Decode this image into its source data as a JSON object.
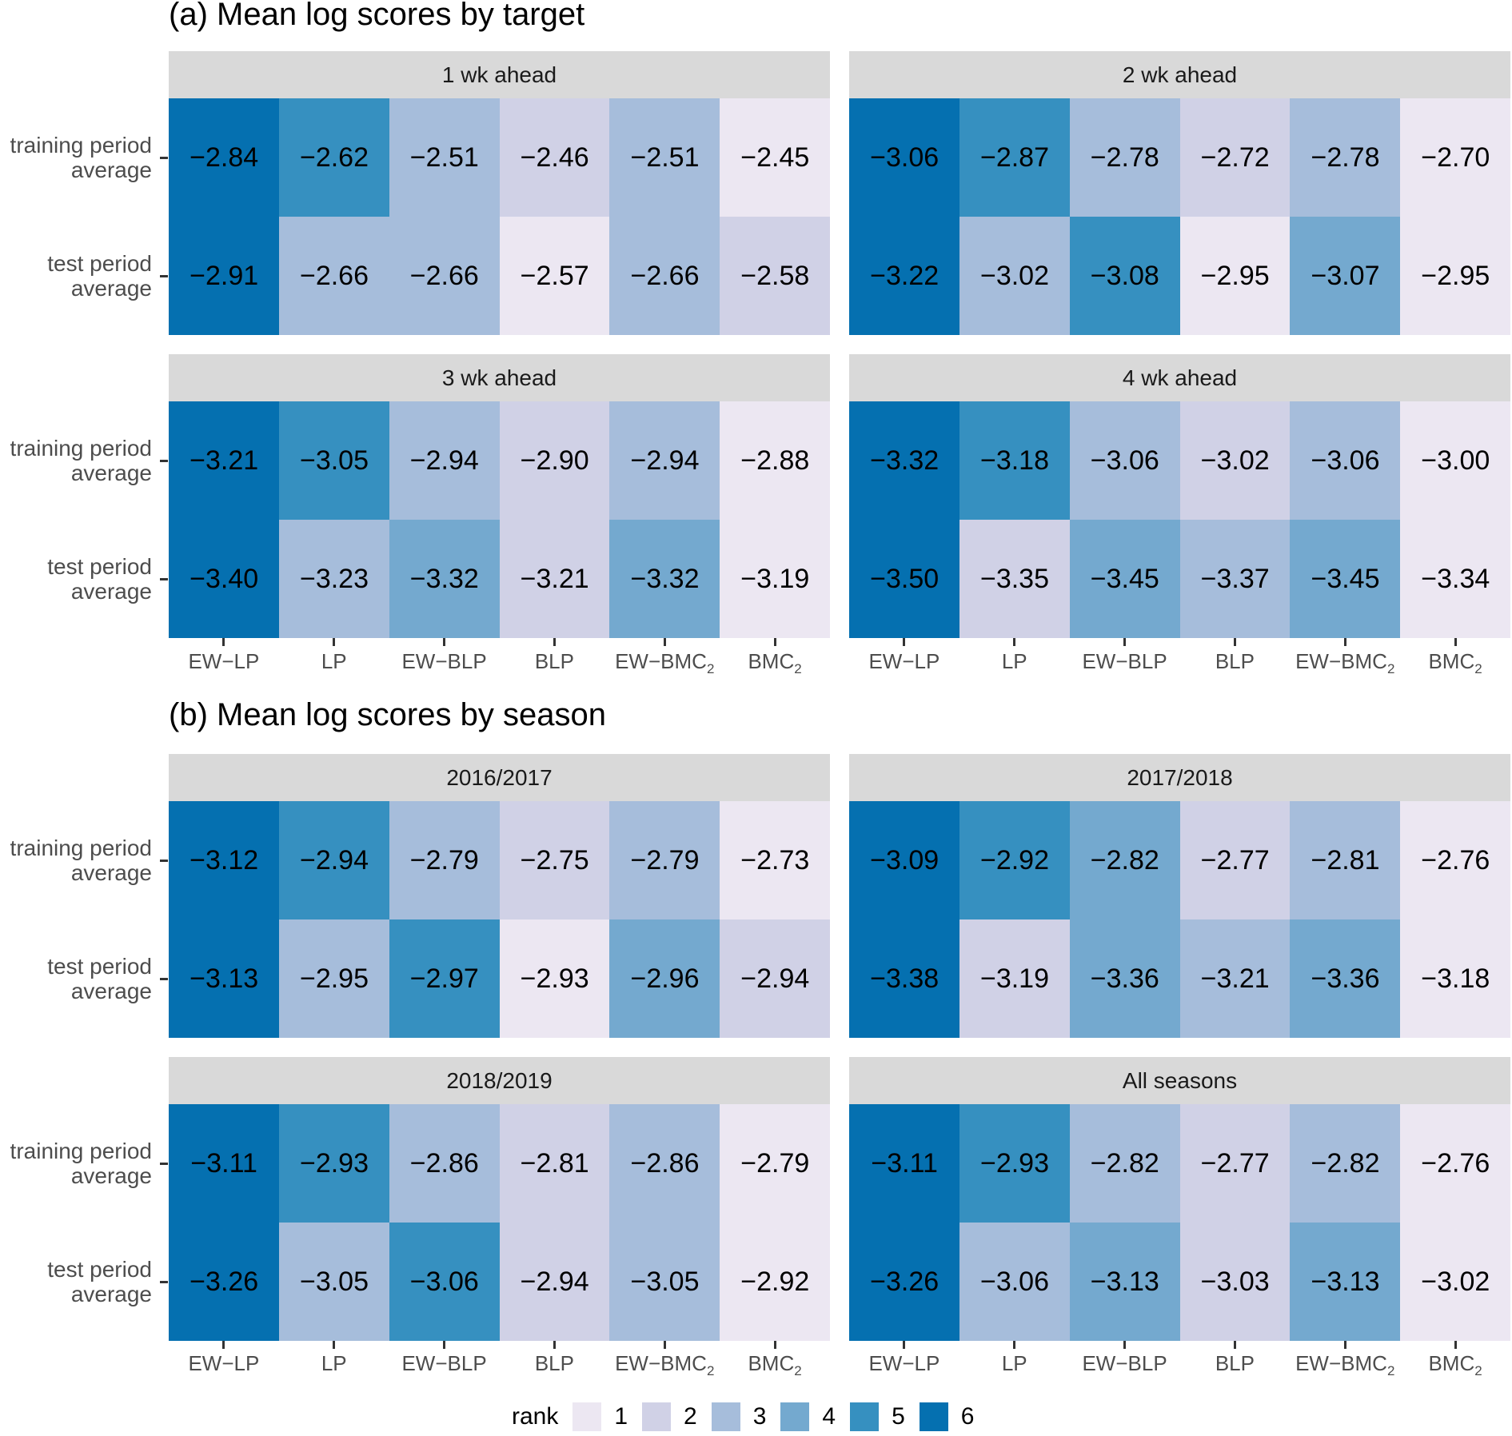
{
  "colors": {
    "1": "#ECE7F2",
    "2": "#D0D1E6",
    "3": "#A6BDDB",
    "4": "#74A9CF",
    "5": "#3690C0",
    "6": "#0570B0"
  },
  "chart_data": [
    {
      "type": "heatmap",
      "title": "(a) Mean log scores by target",
      "x": [
        "EW−LP",
        "LP",
        "EW−BLP",
        "BLP",
        "EW−BMC2",
        "BMC2"
      ],
      "y": [
        "training period average",
        "test period average"
      ],
      "panels": [
        {
          "label": "1 wk ahead",
          "values": [
            [
              -2.84,
              -2.62,
              -2.51,
              -2.46,
              -2.51,
              -2.45
            ],
            [
              -2.91,
              -2.66,
              -2.66,
              -2.57,
              -2.66,
              -2.58
            ]
          ],
          "ranks": [
            [
              6,
              5,
              3,
              2,
              3,
              1
            ],
            [
              6,
              3,
              3,
              1,
              3,
              2
            ]
          ]
        },
        {
          "label": "2 wk ahead",
          "values": [
            [
              -3.06,
              -2.87,
              -2.78,
              -2.72,
              -2.78,
              -2.7
            ],
            [
              -3.22,
              -3.02,
              -3.08,
              -2.95,
              -3.07,
              -2.95
            ]
          ],
          "ranks": [
            [
              6,
              5,
              3,
              2,
              3,
              1
            ],
            [
              6,
              3,
              5,
              1,
              4,
              1
            ]
          ]
        },
        {
          "label": "3 wk ahead",
          "values": [
            [
              -3.21,
              -3.05,
              -2.94,
              -2.9,
              -2.94,
              -2.88
            ],
            [
              -3.4,
              -3.23,
              -3.32,
              -3.21,
              -3.32,
              -3.19
            ]
          ],
          "ranks": [
            [
              6,
              5,
              3,
              2,
              3,
              1
            ],
            [
              6,
              3,
              4,
              2,
              4,
              1
            ]
          ]
        },
        {
          "label": "4 wk ahead",
          "values": [
            [
              -3.32,
              -3.18,
              -3.06,
              -3.02,
              -3.06,
              -3.0
            ],
            [
              -3.5,
              -3.35,
              -3.45,
              -3.37,
              -3.45,
              -3.34
            ]
          ],
          "ranks": [
            [
              6,
              5,
              3,
              2,
              3,
              1
            ],
            [
              6,
              2,
              4,
              3,
              4,
              1
            ]
          ]
        }
      ]
    },
    {
      "type": "heatmap",
      "title": "(b) Mean log scores by season",
      "x": [
        "EW−LP",
        "LP",
        "EW−BLP",
        "BLP",
        "EW−BMC2",
        "BMC2"
      ],
      "y": [
        "training period average",
        "test period average"
      ],
      "panels": [
        {
          "label": "2016/2017",
          "values": [
            [
              -3.12,
              -2.94,
              -2.79,
              -2.75,
              -2.79,
              -2.73
            ],
            [
              -3.13,
              -2.95,
              -2.97,
              -2.93,
              -2.96,
              -2.94
            ]
          ],
          "ranks": [
            [
              6,
              5,
              3,
              2,
              3,
              1
            ],
            [
              6,
              3,
              5,
              1,
              4,
              2
            ]
          ]
        },
        {
          "label": "2017/2018",
          "values": [
            [
              -3.09,
              -2.92,
              -2.82,
              -2.77,
              -2.81,
              -2.76
            ],
            [
              -3.38,
              -3.19,
              -3.36,
              -3.21,
              -3.36,
              -3.18
            ]
          ],
          "ranks": [
            [
              6,
              5,
              4,
              2,
              3,
              1
            ],
            [
              6,
              2,
              4,
              3,
              4,
              1
            ]
          ]
        },
        {
          "label": "2018/2019",
          "values": [
            [
              -3.11,
              -2.93,
              -2.86,
              -2.81,
              -2.86,
              -2.79
            ],
            [
              -3.26,
              -3.05,
              -3.06,
              -2.94,
              -3.05,
              -2.92
            ]
          ],
          "ranks": [
            [
              6,
              5,
              3,
              2,
              3,
              1
            ],
            [
              6,
              3,
              5,
              2,
              3,
              1
            ]
          ]
        },
        {
          "label": "All seasons",
          "values": [
            [
              -3.11,
              -2.93,
              -2.82,
              -2.77,
              -2.82,
              -2.76
            ],
            [
              -3.26,
              -3.06,
              -3.13,
              -3.03,
              -3.13,
              -3.02
            ]
          ],
          "ranks": [
            [
              6,
              5,
              3,
              2,
              3,
              1
            ],
            [
              6,
              3,
              4,
              2,
              4,
              1
            ]
          ]
        }
      ]
    }
  ],
  "legend": {
    "title": "rank",
    "entries": [
      "1",
      "2",
      "3",
      "4",
      "5",
      "6"
    ]
  }
}
